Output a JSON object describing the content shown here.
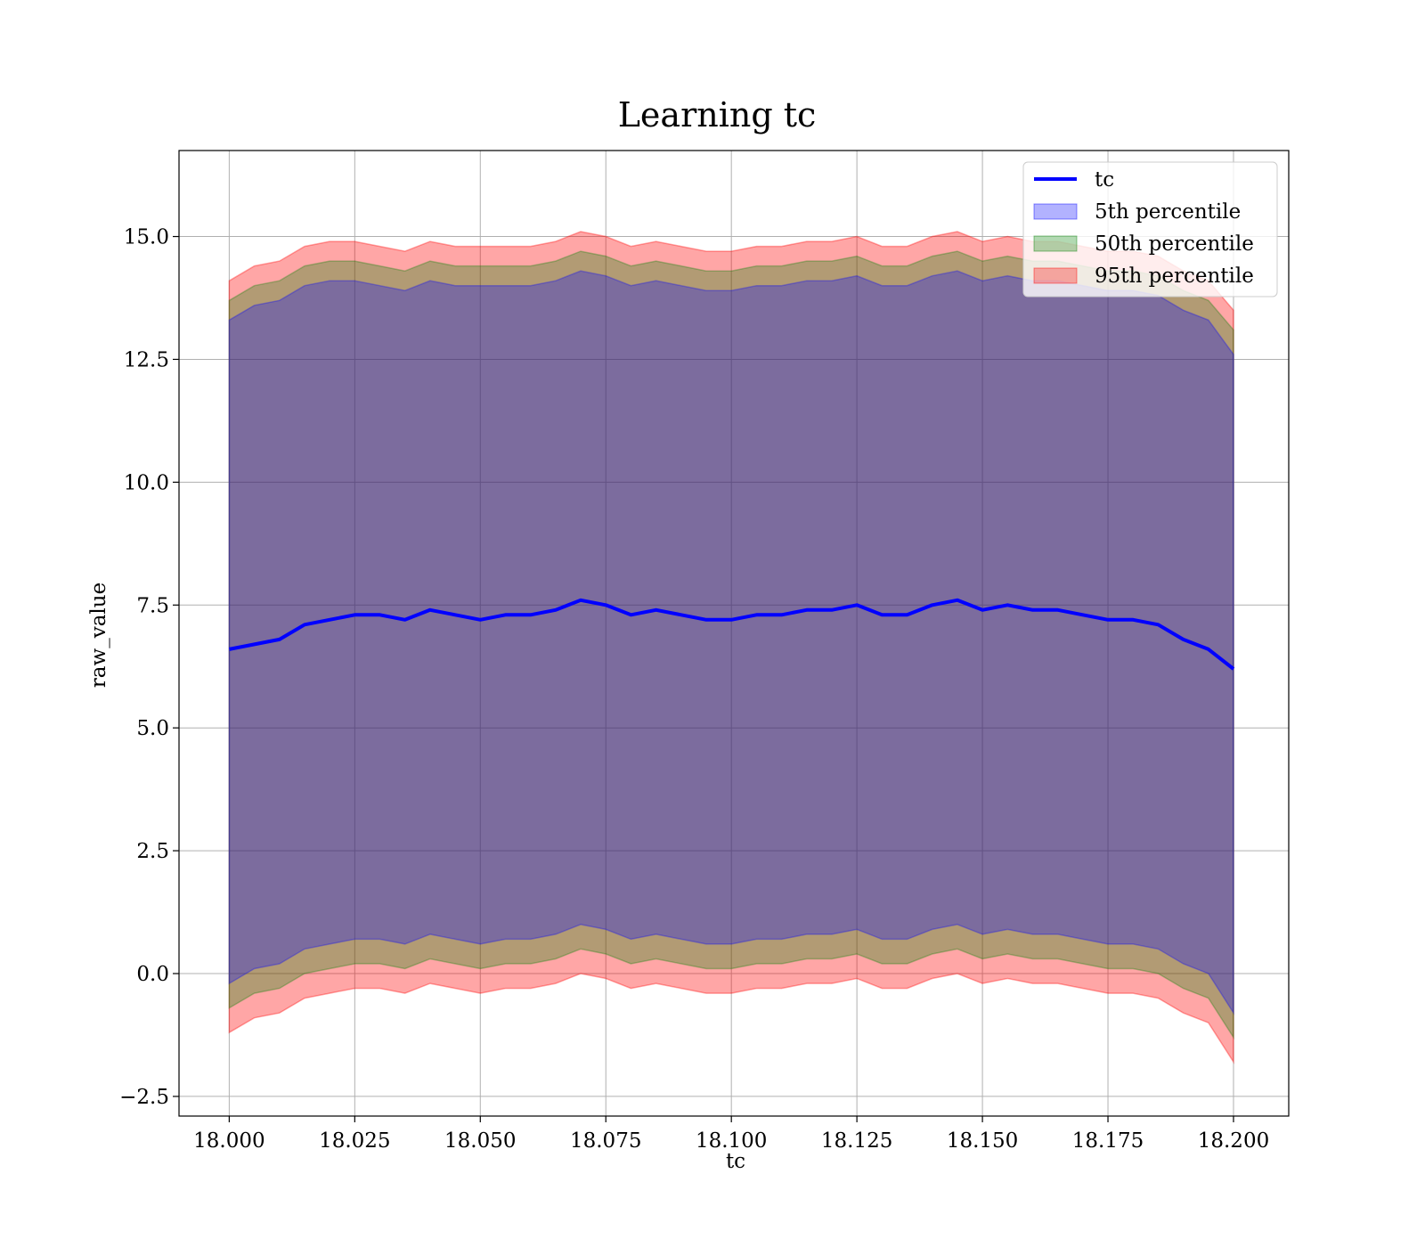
{
  "chart_data": {
    "type": "line",
    "title": "Learning tc",
    "xlabel": "tc",
    "ylabel": "raw_value",
    "xlim": [
      17.99,
      18.211
    ],
    "ylim": [
      -2.9,
      16.75
    ],
    "grid": true,
    "legend_position": "top-right",
    "x_ticks": [
      "18.000",
      "18.025",
      "18.050",
      "18.075",
      "18.100",
      "18.125",
      "18.150",
      "18.175",
      "18.200"
    ],
    "x_tick_values": [
      18.0,
      18.025,
      18.05,
      18.075,
      18.1,
      18.125,
      18.15,
      18.175,
      18.2
    ],
    "y_ticks": [
      "−2.5",
      "0.0",
      "2.5",
      "5.0",
      "7.5",
      "10.0",
      "12.5",
      "15.0"
    ],
    "y_tick_values": [
      -2.5,
      0.0,
      2.5,
      5.0,
      7.5,
      10.0,
      12.5,
      15.0
    ],
    "x": [
      18.0,
      18.005,
      18.01,
      18.015,
      18.02,
      18.025,
      18.03,
      18.035,
      18.04,
      18.045,
      18.05,
      18.055,
      18.06,
      18.065,
      18.07,
      18.075,
      18.08,
      18.085,
      18.09,
      18.095,
      18.1,
      18.105,
      18.11,
      18.115,
      18.12,
      18.125,
      18.13,
      18.135,
      18.14,
      18.145,
      18.15,
      18.155,
      18.16,
      18.165,
      18.17,
      18.175,
      18.18,
      18.185,
      18.19,
      18.195,
      18.2
    ],
    "line": {
      "name": "tc",
      "color": "#0000ff",
      "values": [
        6.6,
        6.7,
        6.8,
        7.1,
        7.2,
        7.3,
        7.3,
        7.2,
        7.4,
        7.3,
        7.2,
        7.3,
        7.3,
        7.4,
        7.6,
        7.5,
        7.3,
        7.4,
        7.3,
        7.2,
        7.2,
        7.3,
        7.3,
        7.4,
        7.4,
        7.5,
        7.3,
        7.3,
        7.5,
        7.6,
        7.4,
        7.5,
        7.4,
        7.4,
        7.3,
        7.2,
        7.2,
        7.1,
        6.8,
        6.6,
        6.2
      ]
    },
    "bands": [
      {
        "name": "95th percentile",
        "color": "#ff0000",
        "opacity": 0.35,
        "upper": [
          14.1,
          14.4,
          14.5,
          14.8,
          14.9,
          14.9,
          14.8,
          14.7,
          14.9,
          14.8,
          14.8,
          14.8,
          14.8,
          14.9,
          15.1,
          15.0,
          14.8,
          14.9,
          14.8,
          14.7,
          14.7,
          14.8,
          14.8,
          14.9,
          14.9,
          15.0,
          14.8,
          14.8,
          15.0,
          15.1,
          14.9,
          15.0,
          14.9,
          14.9,
          14.8,
          14.7,
          14.7,
          14.6,
          14.3,
          14.1,
          13.5
        ],
        "lower": [
          -1.2,
          -0.9,
          -0.8,
          -0.5,
          -0.4,
          -0.3,
          -0.3,
          -0.4,
          -0.2,
          -0.3,
          -0.4,
          -0.3,
          -0.3,
          -0.2,
          0.0,
          -0.1,
          -0.3,
          -0.2,
          -0.3,
          -0.4,
          -0.4,
          -0.3,
          -0.3,
          -0.2,
          -0.2,
          -0.1,
          -0.3,
          -0.3,
          -0.1,
          0.0,
          -0.2,
          -0.1,
          -0.2,
          -0.2,
          -0.3,
          -0.4,
          -0.4,
          -0.5,
          -0.8,
          -1.0,
          -1.8
        ]
      },
      {
        "name": "50th percentile",
        "color": "#008000",
        "opacity": 0.3,
        "upper": [
          13.7,
          14.0,
          14.1,
          14.4,
          14.5,
          14.5,
          14.4,
          14.3,
          14.5,
          14.4,
          14.4,
          14.4,
          14.4,
          14.5,
          14.7,
          14.6,
          14.4,
          14.5,
          14.4,
          14.3,
          14.3,
          14.4,
          14.4,
          14.5,
          14.5,
          14.6,
          14.4,
          14.4,
          14.6,
          14.7,
          14.5,
          14.6,
          14.5,
          14.5,
          14.4,
          14.3,
          14.3,
          14.2,
          13.9,
          13.7,
          13.1
        ],
        "lower": [
          -0.7,
          -0.4,
          -0.3,
          0.0,
          0.1,
          0.2,
          0.2,
          0.1,
          0.3,
          0.2,
          0.1,
          0.2,
          0.2,
          0.3,
          0.5,
          0.4,
          0.2,
          0.3,
          0.2,
          0.1,
          0.1,
          0.2,
          0.2,
          0.3,
          0.3,
          0.4,
          0.2,
          0.2,
          0.4,
          0.5,
          0.3,
          0.4,
          0.3,
          0.3,
          0.2,
          0.1,
          0.1,
          0.0,
          -0.3,
          -0.5,
          -1.3
        ]
      },
      {
        "name": "5th percentile",
        "color": "#0000ff",
        "opacity": 0.3,
        "upper": [
          13.3,
          13.6,
          13.7,
          14.0,
          14.1,
          14.1,
          14.0,
          13.9,
          14.1,
          14.0,
          14.0,
          14.0,
          14.0,
          14.1,
          14.3,
          14.2,
          14.0,
          14.1,
          14.0,
          13.9,
          13.9,
          14.0,
          14.0,
          14.1,
          14.1,
          14.2,
          14.0,
          14.0,
          14.2,
          14.3,
          14.1,
          14.2,
          14.1,
          14.1,
          14.0,
          13.9,
          13.9,
          13.8,
          13.5,
          13.3,
          12.6
        ],
        "lower": [
          -0.2,
          0.1,
          0.2,
          0.5,
          0.6,
          0.7,
          0.7,
          0.6,
          0.8,
          0.7,
          0.6,
          0.7,
          0.7,
          0.8,
          1.0,
          0.9,
          0.7,
          0.8,
          0.7,
          0.6,
          0.6,
          0.7,
          0.7,
          0.8,
          0.8,
          0.9,
          0.7,
          0.7,
          0.9,
          1.0,
          0.8,
          0.9,
          0.8,
          0.8,
          0.7,
          0.6,
          0.6,
          0.5,
          0.2,
          0.0,
          -0.8
        ]
      }
    ],
    "legend": [
      {
        "label": "tc",
        "kind": "line",
        "color": "#0000ff"
      },
      {
        "label": "5th percentile",
        "kind": "patch",
        "color": "#0000ff"
      },
      {
        "label": "50th percentile",
        "kind": "patch",
        "color": "#008000"
      },
      {
        "label": "95th percentile",
        "kind": "patch",
        "color": "#ff0000"
      }
    ]
  }
}
